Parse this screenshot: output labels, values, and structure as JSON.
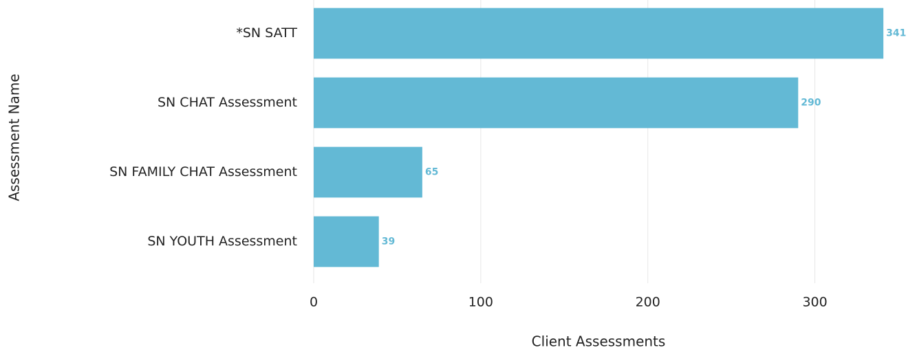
{
  "chart_data": {
    "type": "bar",
    "orientation": "horizontal",
    "categories": [
      "*SN SATT",
      "SN CHAT Assessment",
      "SN FAMILY CHAT Assessment",
      "SN YOUTH Assessment"
    ],
    "values": [
      341,
      290,
      65,
      39
    ],
    "color": "#63b9d5",
    "xlabel": "Client Assessments",
    "ylabel": "Assessment Name",
    "xlim": [
      0,
      350
    ],
    "xticks": [
      0,
      100,
      200,
      300
    ],
    "grid": true
  }
}
